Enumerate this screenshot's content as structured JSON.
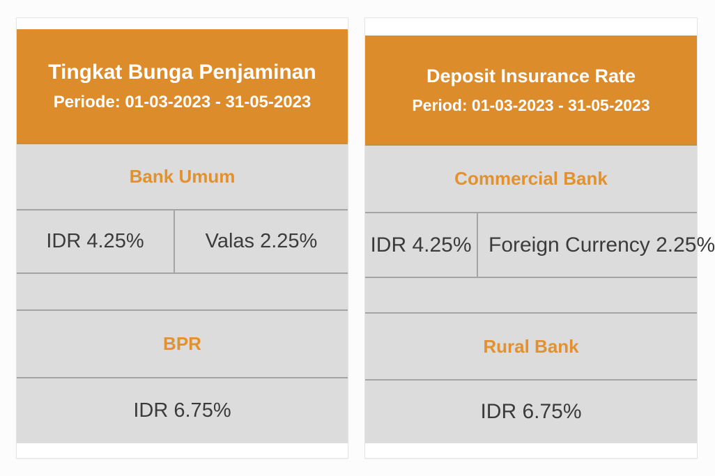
{
  "colors": {
    "header_orange": "#dd8c2c",
    "label_orange": "#e29130",
    "row_gray": "#dcdcdc",
    "divider_gray": "#a4a4a4",
    "value_text": "#3b3b3b",
    "card_white": "#ffffff"
  },
  "cards": [
    {
      "language": "Indonesian",
      "title": "Tingkat Bunga Penjaminan",
      "subtitle": "Periode: 01-03-2023 - 31-05-2023",
      "sections": [
        {
          "label": "Bank Umum",
          "rates": [
            "IDR 4.25%",
            "Valas 2.25%"
          ]
        },
        {
          "label": "BPR",
          "rates": [
            "IDR 6.75%"
          ]
        }
      ]
    },
    {
      "language": "English",
      "title": "Deposit Insurance Rate",
      "subtitle": "Period: 01-03-2023 - 31-05-2023",
      "sections": [
        {
          "label": "Commercial Bank",
          "rates": [
            "IDR 4.25%",
            "Foreign Currency 2.25%"
          ]
        },
        {
          "label": "Rural Bank",
          "rates": [
            "IDR 6.75%"
          ]
        }
      ]
    }
  ]
}
